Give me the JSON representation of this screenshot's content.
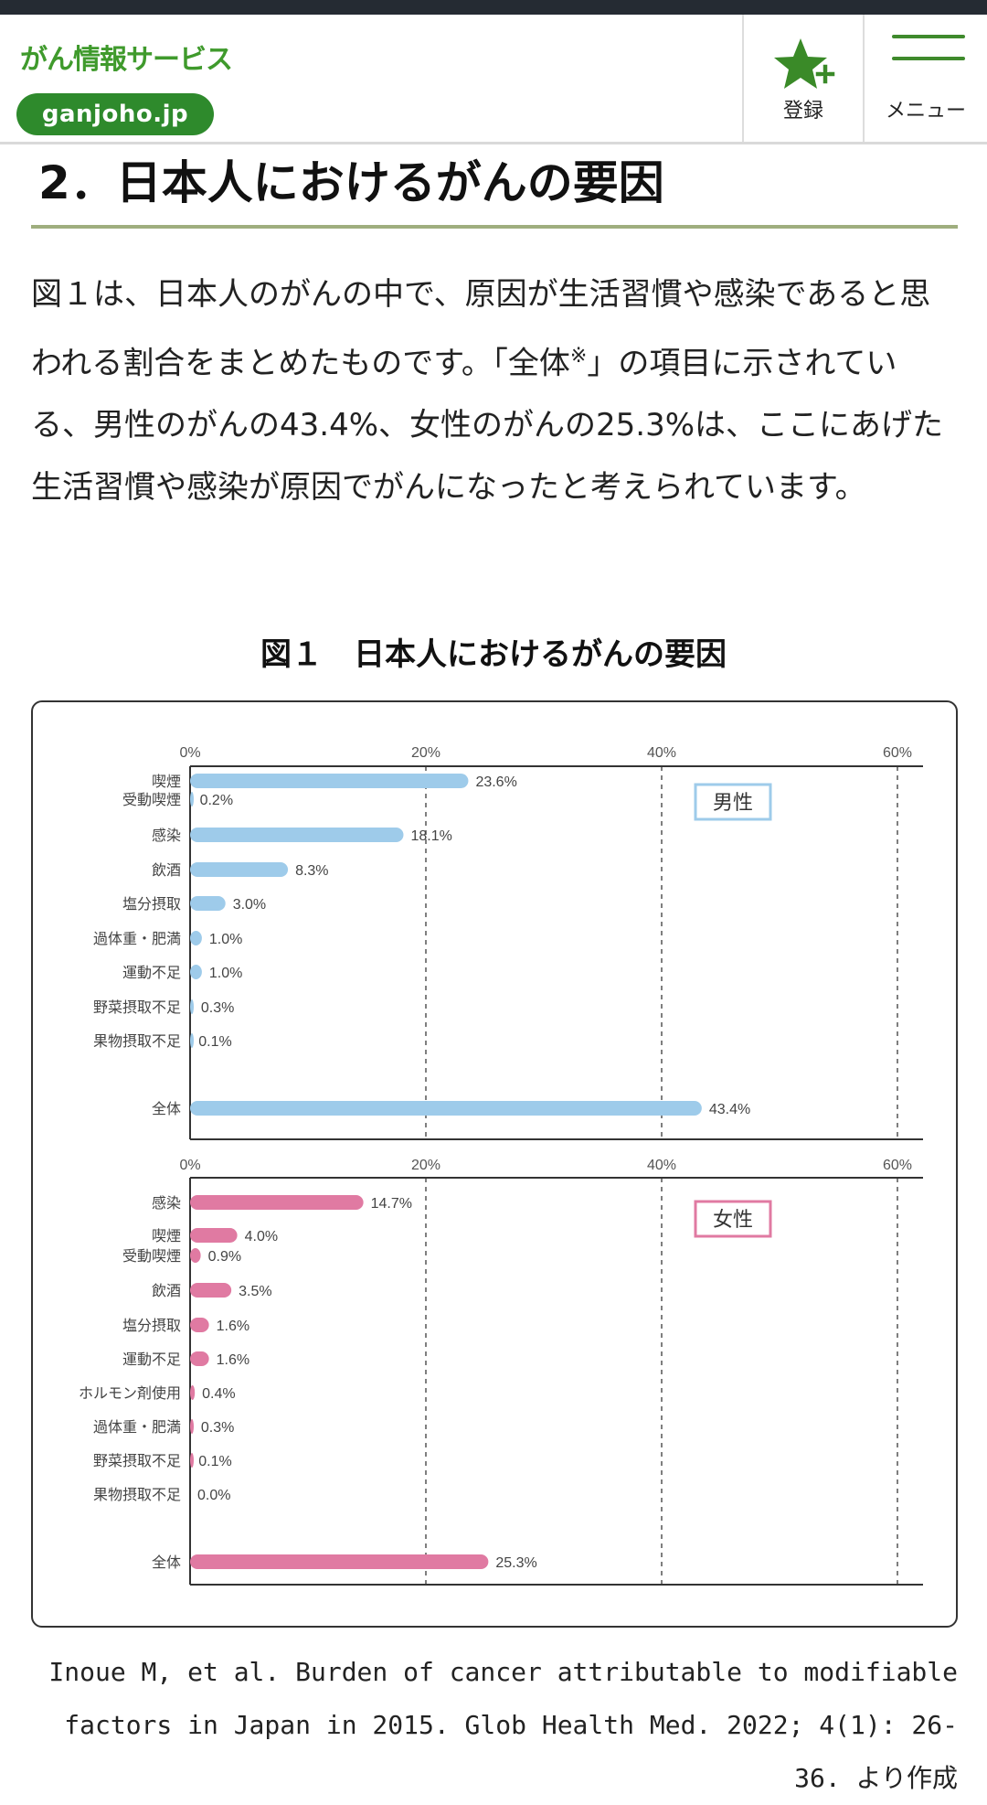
{
  "header": {
    "logo_text": "がん情報サービス",
    "logo_domain": "ganjoho.jp",
    "register_label": "登録",
    "menu_label": "メニュー"
  },
  "section": {
    "title": "2．日本人におけるがんの要因"
  },
  "paragraph": {
    "part1": "図１は、日本人のがんの中で、原因が生活習慣や感染であると思われる割合をまとめたものです。「全体",
    "sup": "※",
    "part2": "」の項目に示されている、男性のがんの43.4%、女性のがんの25.3%は、ここにあげた生活習慣や感染が原因でがんになったと考えられています。"
  },
  "figure": {
    "title": "図１　日本人におけるがんの要因"
  },
  "chart_data": [
    {
      "type": "bar",
      "orientation": "horizontal",
      "title": "",
      "legend_box": "男性",
      "color": "#9ecbea",
      "x_ticks": [
        "0%",
        "20%",
        "40%",
        "60%"
      ],
      "xlim": [
        0,
        60
      ],
      "grid": "dashed vertical at 20, 40, 60",
      "categories": [
        "喫煙",
        "受動喫煙",
        "感染",
        "飲酒",
        "塩分摂取",
        "過体重・肥満",
        "運動不足",
        "野菜摂取不足",
        "果物摂取不足",
        "全体"
      ],
      "values": [
        23.6,
        0.2,
        18.1,
        8.3,
        3.0,
        1.0,
        1.0,
        0.3,
        0.1,
        43.4
      ],
      "value_labels": [
        "23.6%",
        "0.2%",
        "18.1%",
        "8.3%",
        "3.0%",
        "1.0%",
        "1.0%",
        "0.3%",
        "0.1%",
        "43.4%"
      ]
    },
    {
      "type": "bar",
      "orientation": "horizontal",
      "title": "",
      "legend_box": "女性",
      "color": "#e07aa2",
      "x_ticks": [
        "0%",
        "20%",
        "40%",
        "60%"
      ],
      "xlim": [
        0,
        60
      ],
      "grid": "dashed vertical at 20, 40, 60",
      "categories": [
        "感染",
        "喫煙",
        "受動喫煙",
        "飲酒",
        "塩分摂取",
        "運動不足",
        "ホルモン剤使用",
        "過体重・肥満",
        "野菜摂取不足",
        "果物摂取不足",
        "全体"
      ],
      "values": [
        14.7,
        4.0,
        0.9,
        3.5,
        1.6,
        1.6,
        0.4,
        0.3,
        0.1,
        0.0,
        25.3
      ],
      "value_labels": [
        "14.7%",
        "4.0%",
        "0.9%",
        "3.5%",
        "1.6%",
        "1.6%",
        "0.4%",
        "0.3%",
        "0.1%",
        "0.0%",
        "25.3%"
      ]
    }
  ],
  "citation": "Inoue M, et al. Burden of cancer attributable to modifiable factors in Japan in 2015. Glob Health Med. 2022; 4(1): 26-36. より作成"
}
